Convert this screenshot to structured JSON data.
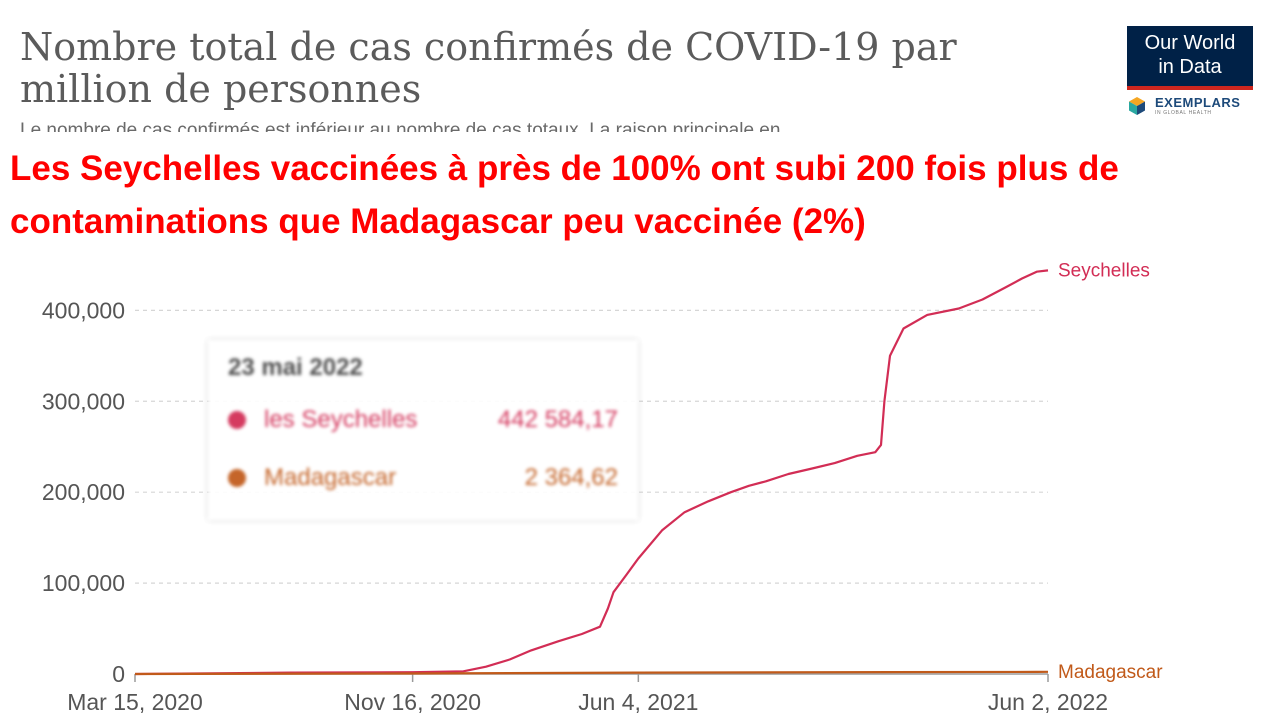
{
  "header": {
    "title": "Nombre total de cas confirmés de COVID-19 par million de personnes",
    "subtitle": "Le nombre de cas confirmés est inférieur au nombre de cas totaux. La raison principale en",
    "headline": "Les Seychelles vaccinées à près de 100% ont subi 200 fois plus de contaminations que Madagascar peu vaccinée (2%)"
  },
  "logo": {
    "line1": "Our World",
    "line2": "in Data",
    "exemplars": "EXEMPLARS",
    "exemplars_sub": "IN GLOBAL HEALTH"
  },
  "tooltip": {
    "date": "23 mai 2022",
    "rows": [
      {
        "name": "les Seychelles",
        "value": "442 584,17",
        "color": "#d22d55"
      },
      {
        "name": "Madagascar",
        "value": "2 364,62",
        "color": "#c15a1a"
      }
    ]
  },
  "chart_data": {
    "type": "line",
    "title": "Nombre total de cas confirmés de COVID-19 par million de personnes",
    "x_ticks": [
      "Mar 15, 2020",
      "Nov 16, 2020",
      "Jun 4, 2021",
      "Jun 2, 2022"
    ],
    "y_ticks": [
      "0",
      "100,000",
      "200,000",
      "300,000",
      "400,000"
    ],
    "ylim": [
      0,
      440000
    ],
    "xlim": [
      "2020-03-15",
      "2022-06-02"
    ],
    "grid": true,
    "series": [
      {
        "name": "Seychelles",
        "color": "#d22d55",
        "points": [
          [
            "2020-03-15",
            0
          ],
          [
            "2020-08-01",
            1500
          ],
          [
            "2020-11-16",
            2000
          ],
          [
            "2020-12-31",
            3000
          ],
          [
            "2021-01-20",
            8000
          ],
          [
            "2021-02-10",
            16000
          ],
          [
            "2021-03-01",
            26000
          ],
          [
            "2021-03-25",
            36000
          ],
          [
            "2021-04-15",
            44000
          ],
          [
            "2021-05-01",
            52000
          ],
          [
            "2021-05-08",
            72000
          ],
          [
            "2021-05-13",
            90000
          ],
          [
            "2021-05-25",
            110000
          ],
          [
            "2021-06-04",
            127000
          ],
          [
            "2021-06-25",
            158000
          ],
          [
            "2021-07-15",
            178000
          ],
          [
            "2021-08-05",
            190000
          ],
          [
            "2021-08-25",
            200000
          ],
          [
            "2021-09-10",
            207000
          ],
          [
            "2021-09-25",
            212000
          ],
          [
            "2021-10-15",
            220000
          ],
          [
            "2021-11-05",
            226000
          ],
          [
            "2021-11-25",
            232000
          ],
          [
            "2021-12-15",
            240000
          ],
          [
            "2021-12-31",
            244000
          ],
          [
            "2022-01-05",
            252000
          ],
          [
            "2022-01-08",
            300000
          ],
          [
            "2022-01-13",
            350000
          ],
          [
            "2022-01-25",
            380000
          ],
          [
            "2022-02-15",
            395000
          ],
          [
            "2022-03-15",
            402000
          ],
          [
            "2022-04-05",
            412000
          ],
          [
            "2022-04-25",
            425000
          ],
          [
            "2022-05-10",
            435000
          ],
          [
            "2022-05-23",
            442584.17
          ],
          [
            "2022-06-02",
            444000
          ]
        ]
      },
      {
        "name": "Madagascar",
        "color": "#c15a1a",
        "points": [
          [
            "2020-03-15",
            0
          ],
          [
            "2020-11-16",
            600
          ],
          [
            "2021-06-04",
            1500
          ],
          [
            "2022-05-23",
            2364.62
          ],
          [
            "2022-06-02",
            2380
          ]
        ]
      }
    ]
  }
}
